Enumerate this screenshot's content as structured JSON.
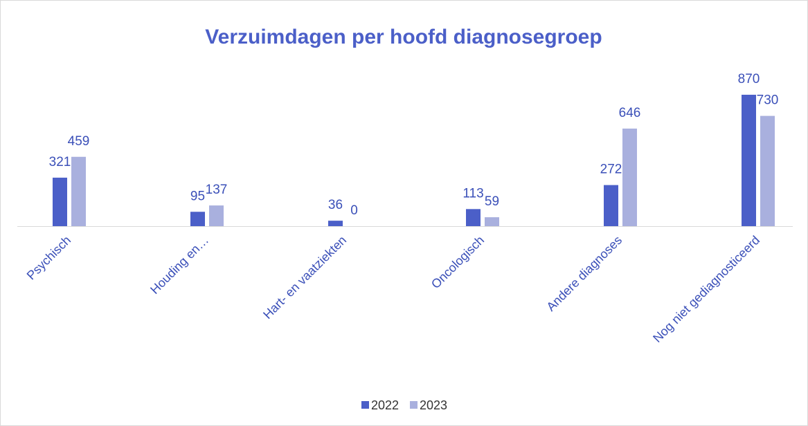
{
  "chart_data": {
    "type": "bar",
    "title": "Verzuimdagen per hoofd diagnosegroep",
    "categories": [
      "Psychisch",
      "Houding en…",
      "Hart- en vaatziekten",
      "Oncologisch",
      "Andere diagnoses",
      "Nog niet gediagnosticeerd"
    ],
    "series": [
      {
        "name": "2022",
        "color": "#4b5fc8",
        "values": [
          321,
          95,
          36,
          113,
          272,
          870
        ]
      },
      {
        "name": "2023",
        "color": "#a9b0de",
        "values": [
          459,
          137,
          0,
          59,
          646,
          730
        ]
      }
    ],
    "legend": "bottom"
  }
}
